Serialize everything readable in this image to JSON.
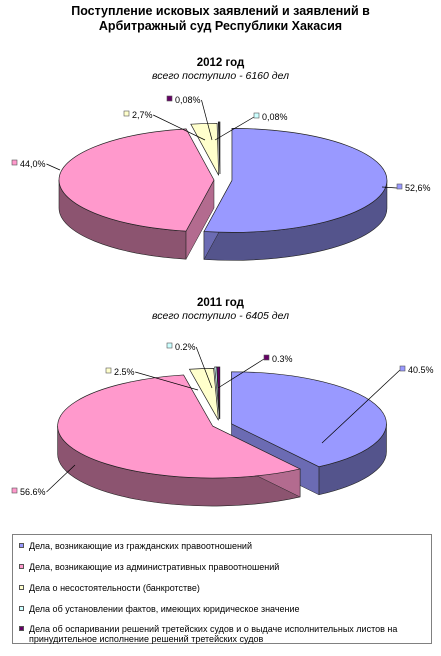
{
  "title_line1": "Поступление исковых заявлений и заявлений в",
  "title_line2": "Арбитражный суд  Республики Хакасия",
  "chart_data": [
    {
      "type": "pie",
      "title": "2012 год",
      "subtitle": "всего поступило - 6160 дел",
      "slices": [
        {
          "label": "52,6%",
          "value": 52.6,
          "color": "#9999ff"
        },
        {
          "label": "44,0%",
          "value": 44.0,
          "color": "#ff99cc"
        },
        {
          "label": "2,7%",
          "value": 2.7,
          "color": "#ffffcc"
        },
        {
          "label": "0,08%",
          "value": 0.08,
          "color": "#660066"
        },
        {
          "label": "0,08%",
          "value": 0.08,
          "color": "#ccffff"
        }
      ]
    },
    {
      "type": "pie",
      "title": "2011 год",
      "subtitle": "всего поступило - 6405 дел",
      "slices": [
        {
          "label": "40.5%",
          "value": 40.5,
          "color": "#9999ff"
        },
        {
          "label": "56.6%",
          "value": 56.6,
          "color": "#ff99cc"
        },
        {
          "label": "2.5%",
          "value": 2.5,
          "color": "#ffffcc"
        },
        {
          "label": "0.2%",
          "value": 0.2,
          "color": "#ccffff"
        },
        {
          "label": "0.3%",
          "value": 0.3,
          "color": "#660066"
        }
      ]
    }
  ],
  "legend": [
    {
      "label": "Дела, возникающие из гражданских  правоотношений",
      "color": "#9999ff"
    },
    {
      "label": "Дела, возникающие из административных правоотношений",
      "color": "#ff99cc"
    },
    {
      "label": "Дела о несостоятельности (банкротстве)",
      "color": "#ffffcc"
    },
    {
      "label": "Дела об установлении фактов, имеющих юридическое значение",
      "color": "#ccffff"
    },
    {
      "label": "Дела об оспаривании решений третейских судов и о выдаче исполнительных листов на принудительное исполнение решений третейских судов",
      "color": "#660066"
    }
  ]
}
